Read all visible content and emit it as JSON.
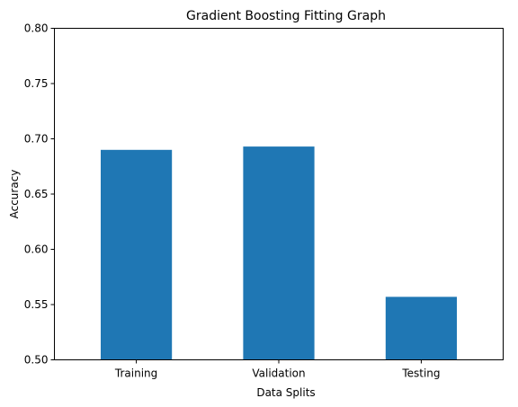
{
  "chart_data": {
    "type": "bar",
    "title": "Gradient Boosting Fitting Graph",
    "xlabel": "Data Splits",
    "ylabel": "Accuracy",
    "categories": [
      "Training",
      "Validation",
      "Testing"
    ],
    "values": [
      0.69,
      0.693,
      0.557
    ],
    "ylim": [
      0.5,
      0.8
    ],
    "yticks": [
      "0.50",
      "0.55",
      "0.60",
      "0.65",
      "0.70",
      "0.75",
      "0.80"
    ],
    "bar_color": "#1f77b4",
    "grid": false
  }
}
